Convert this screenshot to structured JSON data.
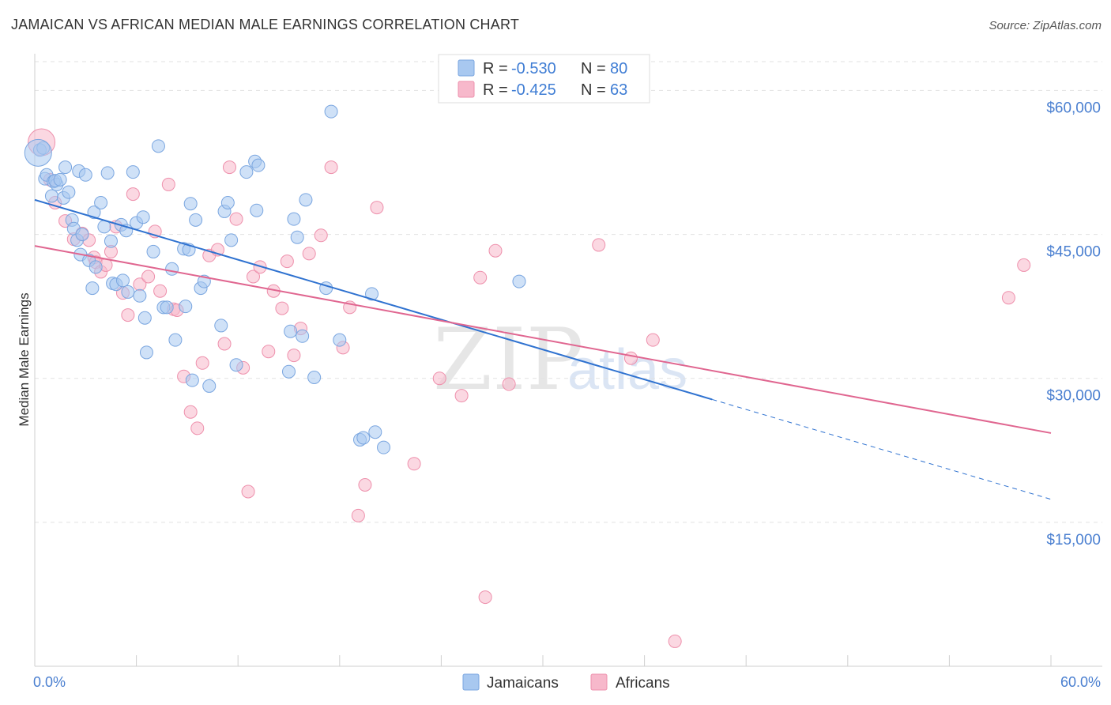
{
  "title": "JAMAICAN VS AFRICAN MEDIAN MALE EARNINGS CORRELATION CHART",
  "source": "Source: ZipAtlas.com",
  "watermark": {
    "zip": "ZIP",
    "atlas": "atlas"
  },
  "legend": {
    "rows": [
      {
        "r_label": "R =",
        "r_value": "-0.530",
        "n_label": "N =",
        "n_value": "80"
      },
      {
        "r_label": "R =",
        "r_value": "-0.425",
        "n_label": "N =",
        "n_value": "63"
      }
    ]
  },
  "bottom_legend": [
    "Jamaicans",
    "Africans"
  ],
  "colors": {
    "jamaicans_fill": "#a8c8f0",
    "jamaicans_stroke": "#7aa6e0",
    "jamaicans_line": "#2f72d0",
    "africans_fill": "#f7b8cb",
    "africans_stroke": "#ee90ac",
    "africans_line": "#e06690",
    "grid": "#e2e2e2",
    "tick_text": "#4a7fd0"
  },
  "chart_data": {
    "type": "scatter",
    "title": "JAMAICAN VS AFRICAN MEDIAN MALE EARNINGS CORRELATION CHART",
    "xlabel": "",
    "ylabel": "Median Male Earnings",
    "xlim": [
      0,
      60
    ],
    "ylim": [
      0,
      63000
    ],
    "x_tick_labels": [
      "0.0%",
      "60.0%"
    ],
    "y_ticks": [
      15000,
      30000,
      45000,
      60000
    ],
    "y_tick_labels": [
      "$15,000",
      "$30,000",
      "$45,000",
      "$60,000"
    ],
    "grid": true,
    "legend_position": "top-center",
    "series": [
      {
        "name": "Jamaicans",
        "r": -0.53,
        "n": 80,
        "trend": {
          "x0": 0,
          "y0": 48600,
          "x1": 40,
          "y1": 27800,
          "dashed_to_x": 60,
          "dashed_to_y": 17400
        },
        "points": [
          [
            0.3,
            53800
          ],
          [
            0.5,
            54000
          ],
          [
            0.6,
            50800
          ],
          [
            0.7,
            51200
          ],
          [
            1.0,
            49000
          ],
          [
            1.1,
            50500
          ],
          [
            1.3,
            50200
          ],
          [
            1.2,
            50600
          ],
          [
            1.5,
            50700
          ],
          [
            1.7,
            48800
          ],
          [
            1.8,
            52000
          ],
          [
            2.0,
            49400
          ],
          [
            2.2,
            46500
          ],
          [
            2.3,
            45600
          ],
          [
            2.5,
            44400
          ],
          [
            2.6,
            51600
          ],
          [
            2.7,
            42900
          ],
          [
            2.8,
            45000
          ],
          [
            3.0,
            51200
          ],
          [
            3.2,
            42300
          ],
          [
            3.4,
            39400
          ],
          [
            3.5,
            47300
          ],
          [
            3.6,
            41600
          ],
          [
            3.9,
            48300
          ],
          [
            4.1,
            45800
          ],
          [
            4.3,
            51400
          ],
          [
            4.5,
            44300
          ],
          [
            4.6,
            39900
          ],
          [
            4.8,
            39800
          ],
          [
            5.1,
            46000
          ],
          [
            5.2,
            40200
          ],
          [
            5.4,
            45400
          ],
          [
            5.5,
            39000
          ],
          [
            5.8,
            51500
          ],
          [
            6.0,
            46200
          ],
          [
            6.2,
            38600
          ],
          [
            6.4,
            46800
          ],
          [
            6.5,
            36300
          ],
          [
            6.6,
            32700
          ],
          [
            7.0,
            43200
          ],
          [
            7.3,
            54200
          ],
          [
            7.6,
            37400
          ],
          [
            7.8,
            37400
          ],
          [
            8.1,
            41400
          ],
          [
            8.3,
            34000
          ],
          [
            8.8,
            43500
          ],
          [
            8.9,
            37500
          ],
          [
            9.1,
            43400
          ],
          [
            9.2,
            48200
          ],
          [
            9.3,
            29800
          ],
          [
            9.5,
            46500
          ],
          [
            9.8,
            39400
          ],
          [
            10.0,
            40100
          ],
          [
            10.3,
            29200
          ],
          [
            11.0,
            35500
          ],
          [
            11.2,
            47400
          ],
          [
            11.4,
            48300
          ],
          [
            11.6,
            44400
          ],
          [
            11.9,
            31400
          ],
          [
            12.5,
            51500
          ],
          [
            13.0,
            52600
          ],
          [
            13.2,
            52200
          ],
          [
            13.1,
            47500
          ],
          [
            15.0,
            30700
          ],
          [
            15.1,
            34900
          ],
          [
            15.3,
            46600
          ],
          [
            15.5,
            44700
          ],
          [
            15.8,
            34400
          ],
          [
            16.0,
            48600
          ],
          [
            16.5,
            30100
          ],
          [
            17.2,
            39400
          ],
          [
            17.5,
            57800
          ],
          [
            18.0,
            34000
          ],
          [
            19.2,
            23600
          ],
          [
            19.4,
            23800
          ],
          [
            19.9,
            38800
          ],
          [
            20.1,
            24400
          ],
          [
            20.6,
            22800
          ],
          [
            28.6,
            40100
          ],
          [
            0.2,
            53500
          ]
        ]
      },
      {
        "name": "Africans",
        "r": -0.425,
        "n": 63,
        "trend": {
          "x0": 0,
          "y0": 43800,
          "x1": 60,
          "y1": 24300
        },
        "points": [
          [
            0.4,
            54600
          ],
          [
            0.9,
            50700
          ],
          [
            1.2,
            48300
          ],
          [
            1.8,
            46400
          ],
          [
            2.3,
            44500
          ],
          [
            2.8,
            45100
          ],
          [
            3.2,
            44400
          ],
          [
            3.5,
            42600
          ],
          [
            3.6,
            42100
          ],
          [
            3.9,
            41100
          ],
          [
            4.2,
            41800
          ],
          [
            4.5,
            43200
          ],
          [
            4.8,
            45800
          ],
          [
            5.2,
            38900
          ],
          [
            5.5,
            36600
          ],
          [
            5.8,
            49200
          ],
          [
            6.2,
            39800
          ],
          [
            6.7,
            40600
          ],
          [
            7.1,
            45300
          ],
          [
            7.4,
            39100
          ],
          [
            7.9,
            50200
          ],
          [
            8.2,
            37200
          ],
          [
            8.4,
            37100
          ],
          [
            8.8,
            30200
          ],
          [
            9.2,
            26500
          ],
          [
            9.6,
            24800
          ],
          [
            9.9,
            31600
          ],
          [
            10.3,
            42800
          ],
          [
            10.8,
            43400
          ],
          [
            11.2,
            33600
          ],
          [
            11.5,
            52000
          ],
          [
            11.9,
            46600
          ],
          [
            12.3,
            31100
          ],
          [
            12.6,
            18200
          ],
          [
            12.9,
            40600
          ],
          [
            13.3,
            41600
          ],
          [
            14.1,
            39100
          ],
          [
            14.6,
            37300
          ],
          [
            14.9,
            42200
          ],
          [
            15.3,
            32400
          ],
          [
            15.7,
            35200
          ],
          [
            16.2,
            43000
          ],
          [
            16.9,
            44900
          ],
          [
            17.5,
            52000
          ],
          [
            18.2,
            33200
          ],
          [
            18.6,
            37400
          ],
          [
            19.1,
            15700
          ],
          [
            19.5,
            18900
          ],
          [
            20.2,
            47800
          ],
          [
            22.4,
            21100
          ],
          [
            23.9,
            30000
          ],
          [
            25.2,
            28200
          ],
          [
            26.3,
            40500
          ],
          [
            26.6,
            7200
          ],
          [
            27.2,
            43300
          ],
          [
            28.0,
            29400
          ],
          [
            33.3,
            43900
          ],
          [
            35.2,
            32100
          ],
          [
            36.5,
            34000
          ],
          [
            37.8,
            2600
          ],
          [
            57.5,
            38400
          ],
          [
            58.4,
            41800
          ],
          [
            13.8,
            32800
          ]
        ]
      }
    ]
  }
}
